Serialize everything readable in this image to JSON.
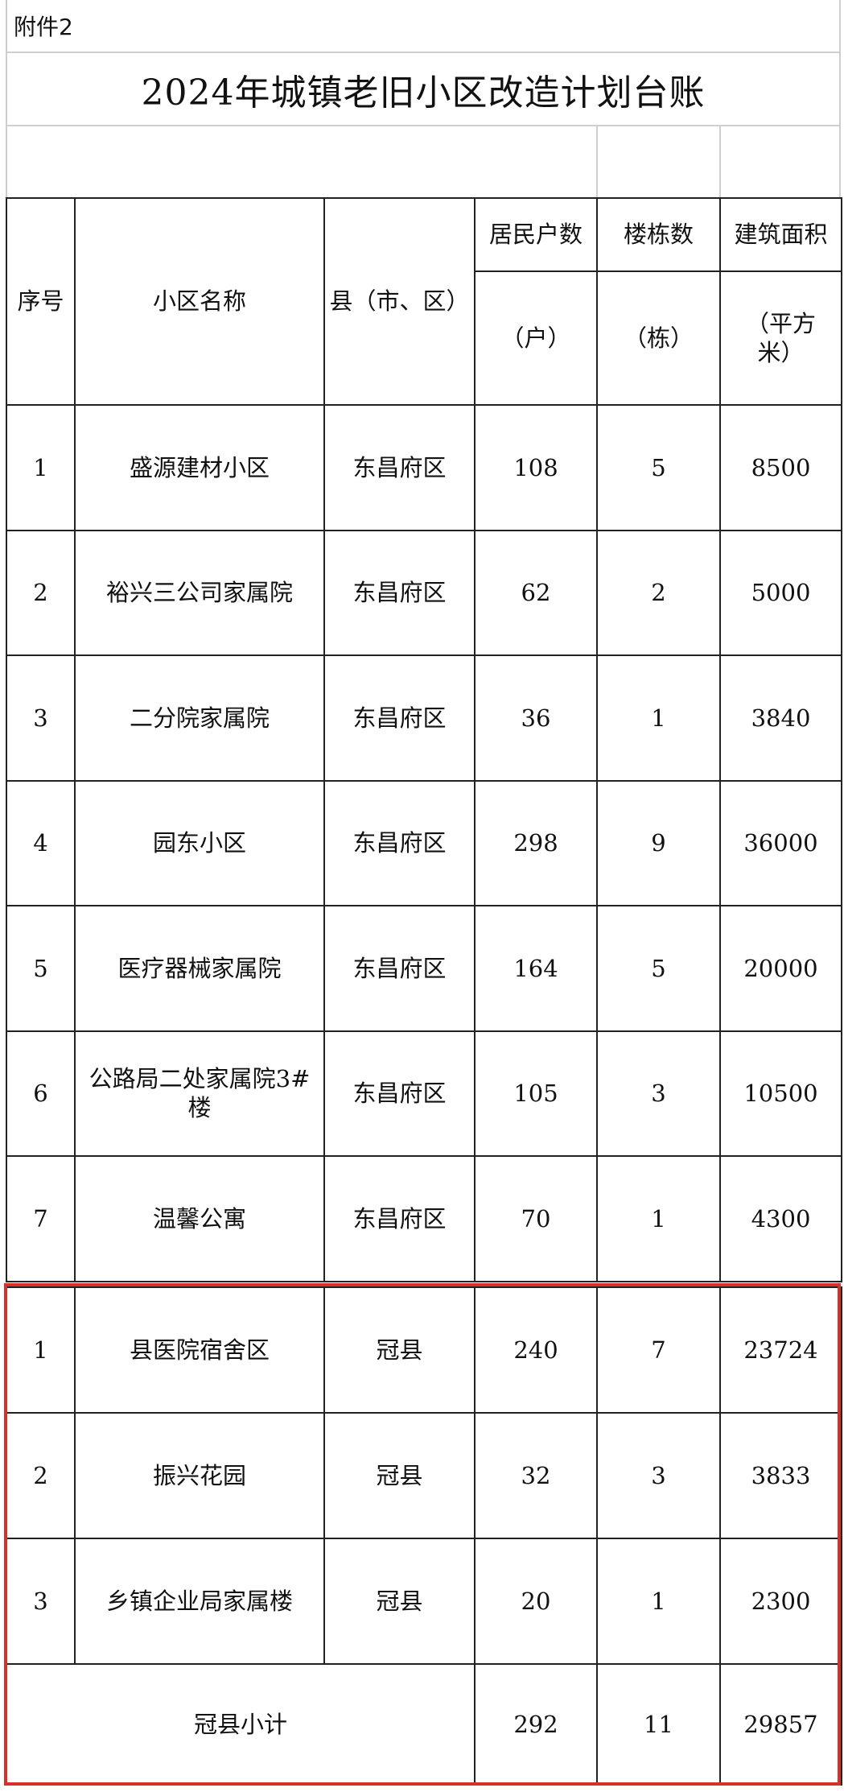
{
  "annex_label": "附件2",
  "title": "2024年城镇老旧小区改造计划台账",
  "headers": {
    "seq": "序号",
    "name": "小区名称",
    "county": "县（市、区）",
    "households": "居民户数",
    "households_unit": "（户）",
    "buildings": "楼栋数",
    "buildings_unit": "（栋）",
    "area": "建筑面积",
    "area_unit": "（平方米）"
  },
  "rows_dongchangfu": [
    {
      "seq": "1",
      "name": "盛源建材小区",
      "county": "东昌府区",
      "households": "108",
      "buildings": "5",
      "area": "8500"
    },
    {
      "seq": "2",
      "name": "裕兴三公司家属院",
      "county": "东昌府区",
      "households": "62",
      "buildings": "2",
      "area": "5000"
    },
    {
      "seq": "3",
      "name": "二分院家属院",
      "county": "东昌府区",
      "households": "36",
      "buildings": "1",
      "area": "3840"
    },
    {
      "seq": "4",
      "name": "园东小区",
      "county": "东昌府区",
      "households": "298",
      "buildings": "9",
      "area": "36000"
    },
    {
      "seq": "5",
      "name": "医疗器械家属院",
      "county": "东昌府区",
      "households": "164",
      "buildings": "5",
      "area": "20000"
    },
    {
      "seq": "6",
      "name": "公路局二处家属院3#楼",
      "county": "东昌府区",
      "households": "105",
      "buildings": "3",
      "area": "10500"
    },
    {
      "seq": "7",
      "name": "温馨公寓",
      "county": "东昌府区",
      "households": "70",
      "buildings": "1",
      "area": "4300"
    }
  ],
  "rows_guanxian": [
    {
      "seq": "1",
      "name": "县医院宿舍区",
      "county": "冠县",
      "households": "240",
      "buildings": "7",
      "area": "23724"
    },
    {
      "seq": "2",
      "name": "振兴花园",
      "county": "冠县",
      "households": "32",
      "buildings": "3",
      "area": "3833"
    },
    {
      "seq": "3",
      "name": "乡镇企业局家属楼",
      "county": "冠县",
      "households": "20",
      "buildings": "1",
      "area": "2300"
    }
  ],
  "subtotal": {
    "label": "冠县小计",
    "households": "292",
    "buildings": "11",
    "area": "29857"
  },
  "highlight_color": "#d9302a"
}
